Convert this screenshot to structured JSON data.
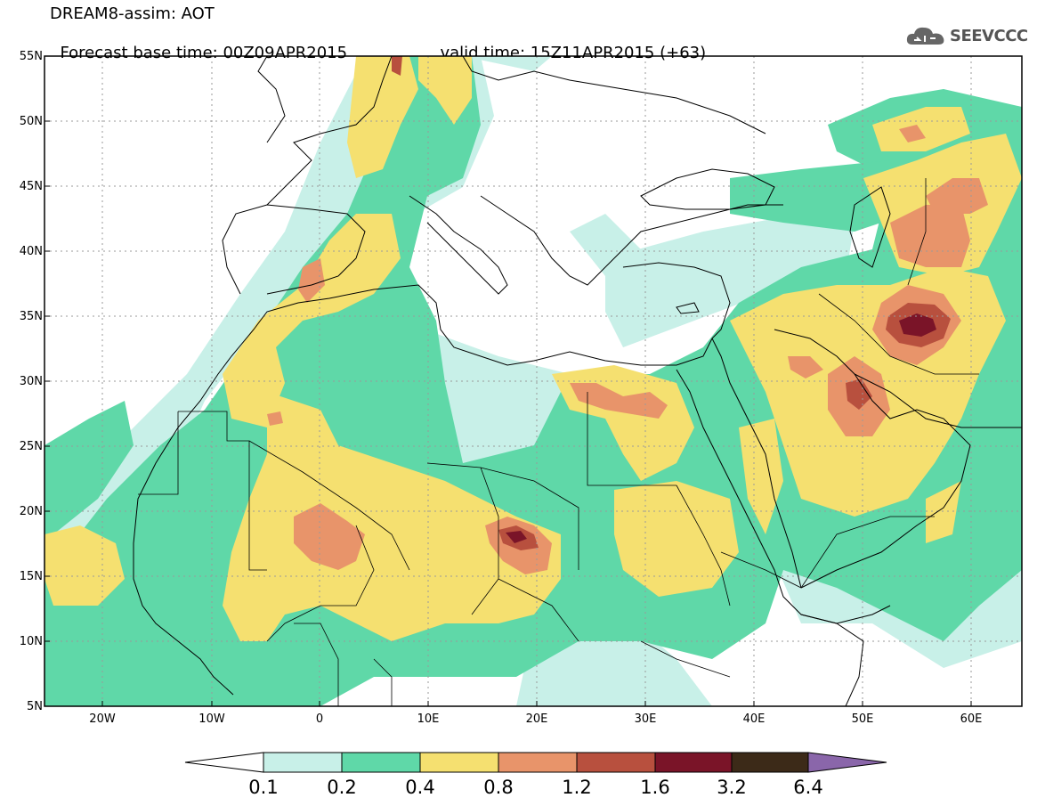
{
  "title": {
    "model": "DREAM8-assim: AOT",
    "base_time_label": "Forecast base time:",
    "base_time_value": "00Z09APR2015",
    "valid_time_label": "valid time:",
    "valid_time_value": "15Z11APR2015 (+63)"
  },
  "logo": {
    "text": "SEEVCCC",
    "icon": "cloud-icon"
  },
  "axes": {
    "lat_labels": [
      "55N",
      "50N",
      "45N",
      "40N",
      "35N",
      "30N",
      "25N",
      "20N",
      "15N",
      "10N",
      "5N"
    ],
    "lon_labels": [
      "20W",
      "10W",
      "0",
      "10E",
      "20E",
      "30E",
      "40E",
      "50E",
      "60E"
    ]
  },
  "colorbar": {
    "ticks": [
      "0.1",
      "0.2",
      "0.4",
      "0.8",
      "1.2",
      "1.6",
      "3.2",
      "6.4"
    ],
    "colors": [
      "#ffffff",
      "#c8f0e8",
      "#5fd8a8",
      "#f5e070",
      "#e8946a",
      "#b8503e",
      "#7a1428",
      "#3c2a18",
      "#8a66aa"
    ]
  },
  "colors": {
    "land_outline": "#000000",
    "grid": "#9a9a9a",
    "bin_0_1_0_2": "#c8f0e8",
    "bin_0_2_0_4": "#5fd8a8",
    "bin_0_4_0_8": "#f5e070",
    "bin_0_8_1_2": "#e8946a",
    "bin_1_2_1_6": "#b8503e",
    "bin_1_6_3_2": "#7a1428"
  }
}
